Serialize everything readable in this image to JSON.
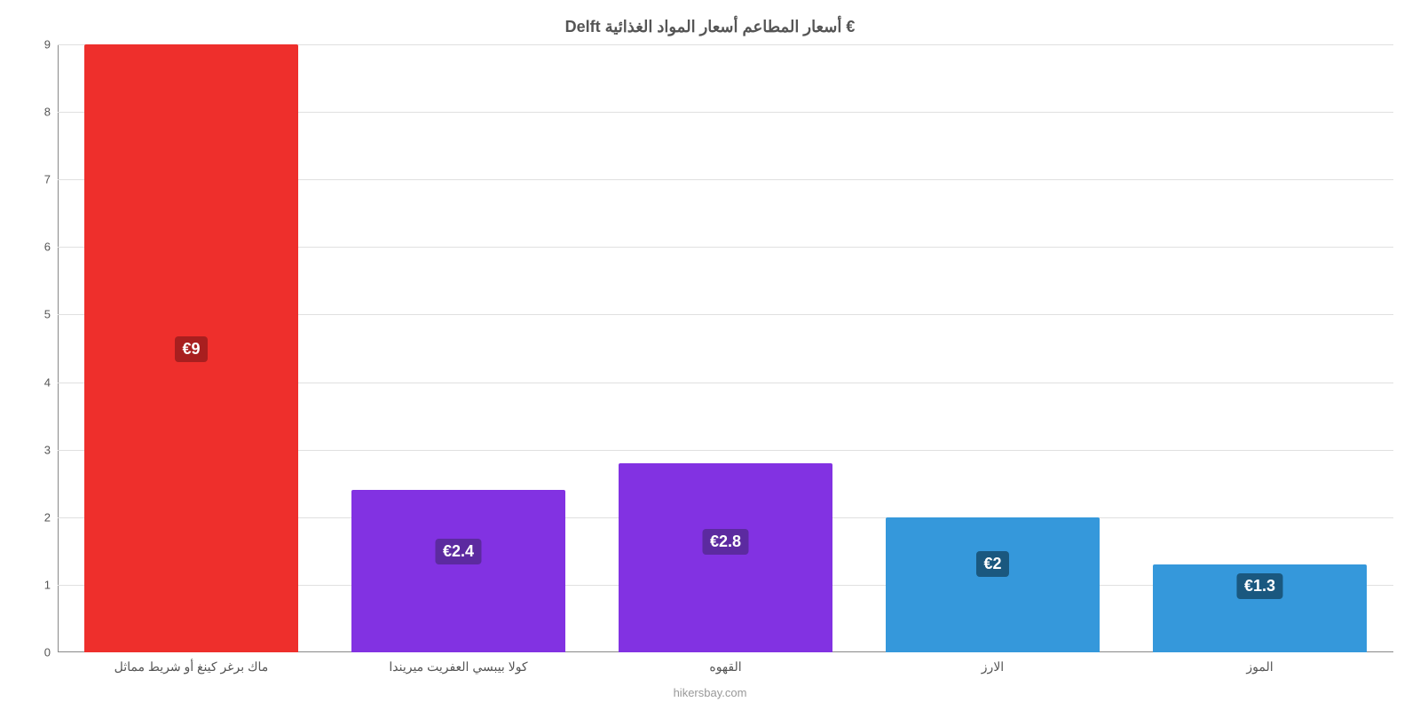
{
  "chart": {
    "type": "bar",
    "title": "Delft أسعار المطاعم أسعار المواد الغذائية €",
    "title_fontsize": 18,
    "title_color": "#555555",
    "background_color": "#ffffff",
    "grid_color": "#e0e0e0",
    "axis_color": "#888888",
    "ylim": [
      0,
      9
    ],
    "yticks": [
      0,
      1,
      2,
      3,
      4,
      5,
      6,
      7,
      8,
      9
    ],
    "ytick_fontsize": 13,
    "ytick_color": "#555555",
    "xtick_fontsize": 14,
    "xtick_color": "#555555",
    "bar_width_pct": 80,
    "value_label_fontsize": 18,
    "value_label_color": "#ffffff",
    "value_label_radius": 4,
    "credit": "hikersbay.com",
    "credit_fontsize": 13,
    "credit_color": "#999999",
    "bars": [
      {
        "label": "ماك برغر كينغ أو شريط مماثل",
        "value": 9,
        "value_label": "€9",
        "color": "#ee2f2c",
        "badge_color": "#a81f1f",
        "value_label_top_pct": 48
      },
      {
        "label": "كولا بيبسي العفريت ميريندا",
        "value": 2.4,
        "value_label": "€2.4",
        "color": "#8232e2",
        "badge_color": "#5c2aa0",
        "value_label_top_pct": 30
      },
      {
        "label": "القهوه",
        "value": 2.8,
        "value_label": "€2.8",
        "color": "#8232e2",
        "badge_color": "#5c2aa0",
        "value_label_top_pct": 35
      },
      {
        "label": "الارز",
        "value": 2,
        "value_label": "€2",
        "color": "#3598db",
        "badge_color": "#1a587f",
        "value_label_top_pct": 25
      },
      {
        "label": "الموز",
        "value": 1.3,
        "value_label": "€1.3",
        "color": "#3598db",
        "badge_color": "#1a587f",
        "value_label_top_pct": 10
      }
    ]
  }
}
